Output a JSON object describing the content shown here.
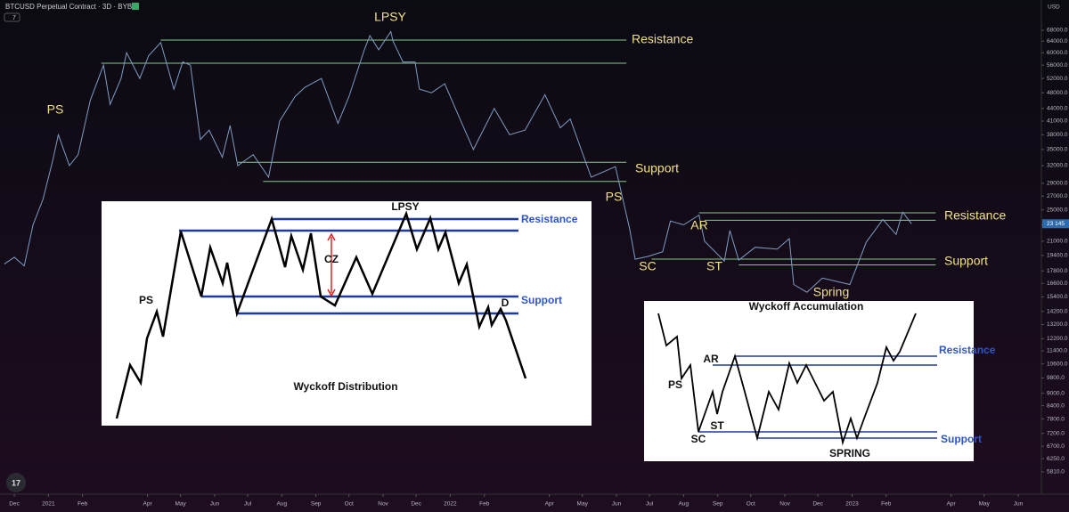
{
  "header": {
    "symbol": "BTCUSD Perpetual Contract · 3D · BYBIT",
    "indicator_count": "7"
  },
  "chart_data": {
    "type": "line",
    "log_scale": true,
    "color": "#7f9cc4",
    "level_color": "#86c98a",
    "currency": "USD",
    "last_price_label": "23 145",
    "xlim": [
      "2020-11-18",
      "2023-06-22"
    ],
    "ylim": [
      5130,
      80500
    ],
    "xticks": [
      {
        "value": "2020-12-01",
        "label": "Dec"
      },
      {
        "value": "2021-01-01",
        "label": "2021"
      },
      {
        "value": "2021-02-01",
        "label": "Feb"
      },
      {
        "value": "2021-04-01",
        "label": "Apr"
      },
      {
        "value": "2021-05-01",
        "label": "May"
      },
      {
        "value": "2021-06-01",
        "label": "Jun"
      },
      {
        "value": "2021-07-01",
        "label": "Jul"
      },
      {
        "value": "2021-08-01",
        "label": "Aug"
      },
      {
        "value": "2021-09-01",
        "label": "Sep"
      },
      {
        "value": "2021-10-01",
        "label": "Oct"
      },
      {
        "value": "2021-11-01",
        "label": "Nov"
      },
      {
        "value": "2021-12-01",
        "label": "Dec"
      },
      {
        "value": "2022-01-01",
        "label": "2022"
      },
      {
        "value": "2022-02-01",
        "label": "Feb"
      },
      {
        "value": "2022-04-01",
        "label": "Apr"
      },
      {
        "value": "2022-05-01",
        "label": "May"
      },
      {
        "value": "2022-06-01",
        "label": "Jun"
      },
      {
        "value": "2022-07-01",
        "label": "Jul"
      },
      {
        "value": "2022-08-01",
        "label": "Aug"
      },
      {
        "value": "2022-09-01",
        "label": "Sep"
      },
      {
        "value": "2022-10-01",
        "label": "Oct"
      },
      {
        "value": "2022-11-01",
        "label": "Nov"
      },
      {
        "value": "2022-12-01",
        "label": "Dec"
      },
      {
        "value": "2023-01-01",
        "label": "2023"
      },
      {
        "value": "2023-02-01",
        "label": "Feb"
      },
      {
        "value": "2023-04-01",
        "label": "Apr"
      },
      {
        "value": "2023-05-01",
        "label": "May"
      },
      {
        "value": "2023-06-01",
        "label": "Jun"
      }
    ],
    "yticks": [
      {
        "value": 68000,
        "label": "68000.0"
      },
      {
        "value": 64000,
        "label": "64000.0"
      },
      {
        "value": 60000,
        "label": "60000.0"
      },
      {
        "value": 56000,
        "label": "56000.0"
      },
      {
        "value": 52000,
        "label": "52000.0"
      },
      {
        "value": 48000,
        "label": "48000.0"
      },
      {
        "value": 44000,
        "label": "44000.0"
      },
      {
        "value": 41000,
        "label": "41000.0"
      },
      {
        "value": 38000,
        "label": "38000.0"
      },
      {
        "value": 35000,
        "label": "35000.0"
      },
      {
        "value": 32000,
        "label": "32000.0"
      },
      {
        "value": 29000,
        "label": "29000.0"
      },
      {
        "value": 27000,
        "label": "27000.0"
      },
      {
        "value": 25000,
        "label": "25000.0"
      },
      {
        "value": 23000,
        "label": "23000.0"
      },
      {
        "value": 21000,
        "label": "21000.0"
      },
      {
        "value": 19400,
        "label": "19400.0"
      },
      {
        "value": 17800,
        "label": "17800.0"
      },
      {
        "value": 16600,
        "label": "16600.0"
      },
      {
        "value": 15400,
        "label": "15400.0"
      },
      {
        "value": 14200,
        "label": "14200.0"
      },
      {
        "value": 13200,
        "label": "13200.0"
      },
      {
        "value": 12200,
        "label": "12200.0"
      },
      {
        "value": 11400,
        "label": "11400.0"
      },
      {
        "value": 10600,
        "label": "10600.0"
      },
      {
        "value": 9800,
        "label": "9800.0"
      },
      {
        "value": 9000,
        "label": "9000.0"
      },
      {
        "value": 8400,
        "label": "8400.0"
      },
      {
        "value": 7800,
        "label": "7800.0"
      },
      {
        "value": 7200,
        "label": "7200.0"
      },
      {
        "value": 6700,
        "label": "6700.0"
      },
      {
        "value": 6250,
        "label": "6250.0"
      },
      {
        "value": 5810,
        "label": "5810.0"
      }
    ],
    "x": [
      "2020-11-22",
      "2020-12-01",
      "2020-12-10",
      "2020-12-18",
      "2020-12-27",
      "2021-01-05",
      "2021-01-10",
      "2021-01-20",
      "2021-01-28",
      "2021-02-08",
      "2021-02-20",
      "2021-02-26",
      "2021-03-08",
      "2021-03-13",
      "2021-03-25",
      "2021-04-02",
      "2021-04-13",
      "2021-04-25",
      "2021-05-03",
      "2021-05-10",
      "2021-05-19",
      "2021-05-27",
      "2021-06-08",
      "2021-06-15",
      "2021-06-22",
      "2021-07-06",
      "2021-07-20",
      "2021-07-30",
      "2021-08-13",
      "2021-08-22",
      "2021-09-06",
      "2021-09-21",
      "2021-10-01",
      "2021-10-15",
      "2021-10-20",
      "2021-10-28",
      "2021-11-08",
      "2021-11-10",
      "2021-11-19",
      "2021-11-30",
      "2021-12-04",
      "2021-12-15",
      "2021-12-27",
      "2022-01-09",
      "2022-01-22",
      "2022-02-10",
      "2022-02-24",
      "2022-03-10",
      "2022-03-28",
      "2022-04-11",
      "2022-04-20",
      "2022-05-09",
      "2022-05-31",
      "2022-06-13",
      "2022-06-18",
      "2022-06-30",
      "2022-07-13",
      "2022-07-20",
      "2022-08-01",
      "2022-08-15",
      "2022-08-20",
      "2022-09-07",
      "2022-09-12",
      "2022-09-20",
      "2022-10-05",
      "2022-10-25",
      "2022-11-05",
      "2022-11-09",
      "2022-11-21",
      "2022-12-05",
      "2022-12-30",
      "2023-01-14",
      "2023-01-29",
      "2023-02-10",
      "2023-02-16",
      "2023-02-24"
    ],
    "values": [
      18500,
      19200,
      18300,
      23000,
      26500,
      33000,
      38000,
      32000,
      34000,
      46000,
      56000,
      45000,
      52000,
      60000,
      52000,
      59000,
      63500,
      49000,
      57000,
      56000,
      37000,
      39000,
      33500,
      40000,
      32000,
      34000,
      30000,
      41000,
      47000,
      49500,
      52000,
      40500,
      47000,
      61000,
      66000,
      61000,
      67500,
      64000,
      57000,
      57000,
      49000,
      48000,
      50500,
      42000,
      35000,
      44000,
      38000,
      39000,
      47500,
      39500,
      41500,
      30000,
      31800,
      22500,
      19000,
      19300,
      19800,
      23500,
      23000,
      24300,
      21000,
      18800,
      22300,
      18900,
      20300,
      20100,
      21300,
      16500,
      15800,
      17100,
      16500,
      20900,
      23700,
      21800,
      24700,
      23145
    ],
    "levels": [
      {
        "price": 64400,
        "from": "2021-04-13",
        "to": "2022-06-10"
      },
      {
        "price": 56600,
        "from": "2021-02-18",
        "to": "2022-06-10"
      },
      {
        "price": 32600,
        "from": "2021-06-22",
        "to": "2022-06-10"
      },
      {
        "price": 29300,
        "from": "2021-07-15",
        "to": "2022-06-10"
      },
      {
        "price": 24600,
        "from": "2022-08-15",
        "to": "2023-03-18"
      },
      {
        "price": 23600,
        "from": "2022-08-20",
        "to": "2023-03-18"
      },
      {
        "price": 19000,
        "from": "2022-07-03",
        "to": "2023-03-18"
      },
      {
        "price": 18400,
        "from": "2022-09-20",
        "to": "2023-03-18"
      }
    ],
    "annotations": [
      "PS",
      "LPSY",
      "Resistance",
      "Support",
      "PS",
      "AR",
      "SC",
      "ST",
      "Spring",
      "Resistance",
      "Support"
    ]
  },
  "distribution": {
    "title": "Wyckoff Distribution",
    "labels": [
      "LPSY",
      "Resistance",
      "CZ",
      "PS",
      "Support",
      "D"
    ]
  },
  "accumulation": {
    "title": "Wyckoff Accumulation",
    "labels": [
      "PS",
      "AR",
      "Resistance",
      "ST",
      "SC",
      "Support",
      "SPRING"
    ]
  }
}
